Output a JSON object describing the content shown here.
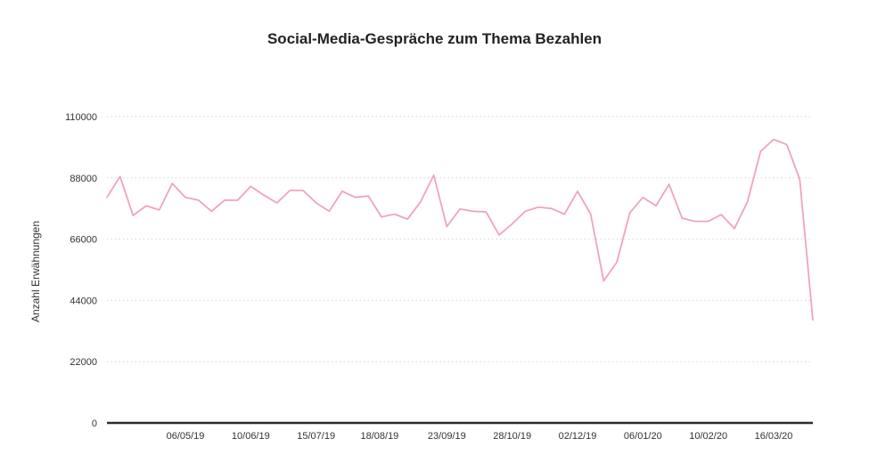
{
  "chart_data": {
    "type": "line",
    "title": "Social-Media-Gespräche zum Thema Bezahlen",
    "ylabel": "Anzahl Erwähnungen",
    "xlabel": "",
    "ylim": [
      0,
      110000
    ],
    "yticks": [
      0,
      22000,
      44000,
      66000,
      88000,
      110000
    ],
    "ytick_labels": [
      "0",
      "22000",
      "44000",
      "66000",
      "88000",
      "110000"
    ],
    "grid": true,
    "legend": "none",
    "x_date_range": [
      "2019-03-25",
      "2020-04-06"
    ],
    "xtick_dates": [
      "2019-05-06",
      "2019-06-10",
      "2019-07-15",
      "2019-08-18",
      "2019-09-23",
      "2019-10-28",
      "2019-12-02",
      "2020-01-06",
      "2020-02-10",
      "2020-03-16"
    ],
    "xtick_labels": [
      "06/05/19",
      "10/06/19",
      "15/07/19",
      "18/08/19",
      "23/09/19",
      "28/10/19",
      "02/12/19",
      "06/01/20",
      "10/02/20",
      "16/03/20"
    ],
    "series": [
      {
        "color": "#f0a3be",
        "x": [
          "2019-03-25",
          "2019-04-01",
          "2019-04-08",
          "2019-04-15",
          "2019-04-22",
          "2019-04-29",
          "2019-05-06",
          "2019-05-13",
          "2019-05-20",
          "2019-05-27",
          "2019-06-03",
          "2019-06-10",
          "2019-06-17",
          "2019-06-24",
          "2019-07-01",
          "2019-07-08",
          "2019-07-15",
          "2019-07-22",
          "2019-07-29",
          "2019-08-05",
          "2019-08-12",
          "2019-08-19",
          "2019-08-26",
          "2019-09-02",
          "2019-09-09",
          "2019-09-16",
          "2019-09-23",
          "2019-09-30",
          "2019-10-07",
          "2019-10-14",
          "2019-10-21",
          "2019-10-28",
          "2019-11-04",
          "2019-11-11",
          "2019-11-18",
          "2019-11-25",
          "2019-12-02",
          "2019-12-09",
          "2019-12-16",
          "2019-12-23",
          "2019-12-30",
          "2020-01-06",
          "2020-01-13",
          "2020-01-20",
          "2020-01-27",
          "2020-02-03",
          "2020-02-10",
          "2020-02-17",
          "2020-02-24",
          "2020-03-02",
          "2020-03-09",
          "2020-03-16",
          "2020-03-23",
          "2020-03-30",
          "2020-04-06"
        ],
        "y": [
          81000,
          88500,
          74500,
          78000,
          76500,
          86000,
          81000,
          80000,
          76000,
          80000,
          80000,
          85000,
          81800,
          79000,
          83500,
          83500,
          79000,
          76000,
          83200,
          81000,
          81500,
          74000,
          75000,
          73200,
          79500,
          89000,
          70500,
          76800,
          76000,
          75800,
          67500,
          71500,
          76000,
          77500,
          77000,
          75000,
          83200,
          75000,
          51000,
          57700,
          75500,
          81000,
          78000,
          85700,
          73500,
          72400,
          72400,
          74800,
          69800,
          79500,
          97500,
          101800,
          100000,
          87500,
          37000
        ]
      }
    ]
  }
}
